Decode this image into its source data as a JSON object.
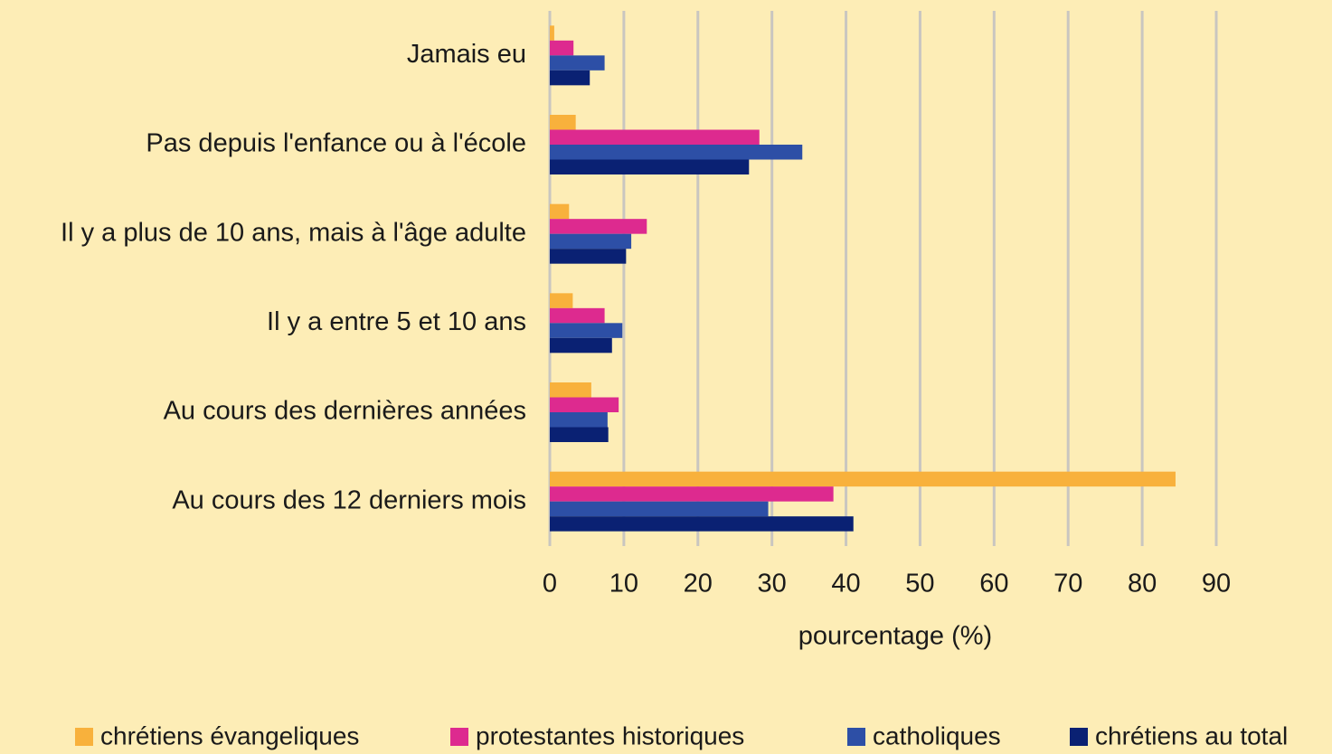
{
  "chart_data": {
    "type": "bar",
    "orientation": "horizontal",
    "categories": [
      "Jamais eu",
      "Pas depuis l'enfance ou à l'école",
      "Il y a plus de 10 ans, mais à l'âge adulte",
      "Il y a entre 5 et 10 ans",
      "Au cours des dernières années",
      "Au cours des 12 derniers mois"
    ],
    "series": [
      {
        "name": "chrétiens évangeliques",
        "color": "#f8b13c",
        "values": [
          0.6,
          3.5,
          2.6,
          3.1,
          5.6,
          84.5
        ]
      },
      {
        "name": "protestantes historiques",
        "color": "#dd2a8f",
        "values": [
          3.2,
          28.3,
          13.1,
          7.4,
          9.3,
          38.3
        ]
      },
      {
        "name": "catholiques",
        "color": "#2d4fa6",
        "values": [
          7.4,
          34.1,
          11.0,
          9.8,
          7.8,
          29.5
        ]
      },
      {
        "name": "chrétiens au total",
        "color": "#0a2173",
        "values": [
          5.4,
          26.9,
          10.3,
          8.4,
          7.9,
          41.0
        ]
      }
    ],
    "x_label": "pourcentage (%)",
    "xlim": [
      0,
      90
    ],
    "xticks": [
      0,
      10,
      20,
      30,
      40,
      50,
      60,
      70,
      80,
      90
    ],
    "grid": true,
    "legend": "bottom"
  }
}
